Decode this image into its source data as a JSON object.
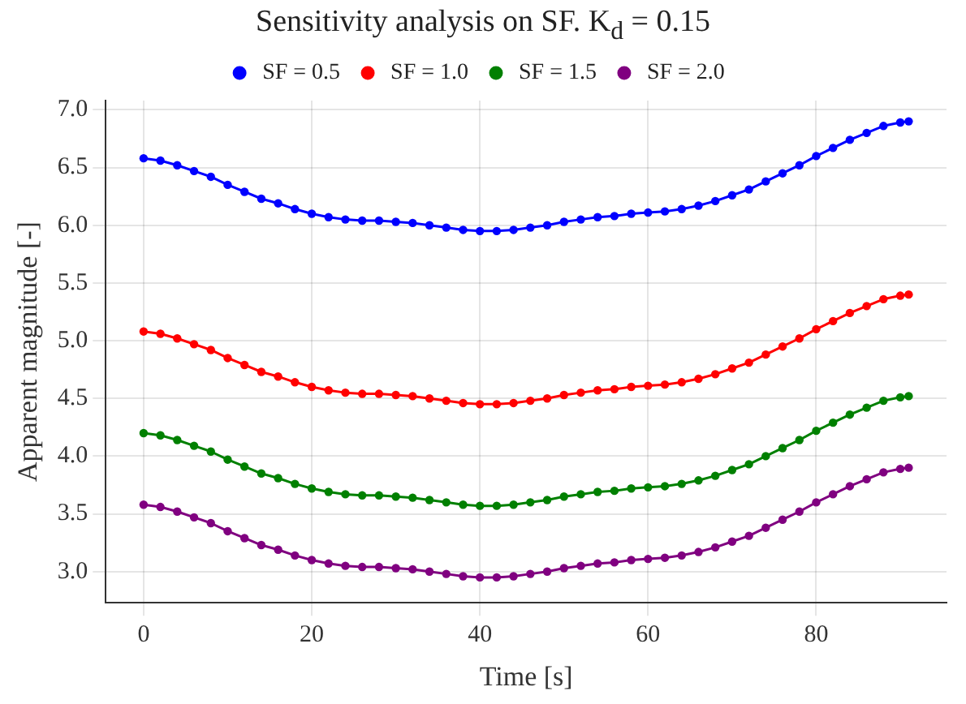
{
  "chart_data": {
    "type": "line",
    "title": "Sensitivity analysis on SF. K$_{d}$ = 0.15",
    "xlabel": "Time [s]",
    "ylabel": "Apparent magnitude [-]",
    "x": [
      0,
      2,
      4,
      6,
      8,
      10,
      12,
      14,
      16,
      18,
      20,
      22,
      24,
      26,
      28,
      30,
      32,
      34,
      36,
      38,
      40,
      42,
      44,
      46,
      48,
      50,
      52,
      54,
      56,
      58,
      60,
      62,
      64,
      66,
      68,
      70,
      72,
      74,
      76,
      78,
      80,
      82,
      84,
      86,
      88,
      90,
      91
    ],
    "series": [
      {
        "name": "SF = 0.5",
        "color": "#0000ff",
        "values": [
          6.58,
          6.56,
          6.52,
          6.47,
          6.42,
          6.35,
          6.29,
          6.23,
          6.19,
          6.14,
          6.1,
          6.07,
          6.05,
          6.04,
          6.04,
          6.03,
          6.02,
          6.0,
          5.98,
          5.96,
          5.95,
          5.95,
          5.96,
          5.98,
          6.0,
          6.03,
          6.05,
          6.07,
          6.08,
          6.1,
          6.11,
          6.12,
          6.14,
          6.17,
          6.21,
          6.26,
          6.31,
          6.38,
          6.45,
          6.52,
          6.6,
          6.67,
          6.74,
          6.8,
          6.86,
          6.89,
          6.9
        ]
      },
      {
        "name": "SF = 1.0",
        "color": "#ff0000",
        "values": [
          5.08,
          5.06,
          5.02,
          4.97,
          4.92,
          4.85,
          4.79,
          4.73,
          4.69,
          4.64,
          4.6,
          4.57,
          4.55,
          4.54,
          4.54,
          4.53,
          4.52,
          4.5,
          4.48,
          4.46,
          4.45,
          4.45,
          4.46,
          4.48,
          4.5,
          4.53,
          4.55,
          4.57,
          4.58,
          4.6,
          4.61,
          4.62,
          4.64,
          4.67,
          4.71,
          4.76,
          4.81,
          4.88,
          4.95,
          5.02,
          5.1,
          5.17,
          5.24,
          5.3,
          5.36,
          5.39,
          5.4
        ]
      },
      {
        "name": "SF = 1.5",
        "color": "#008000",
        "values": [
          4.2,
          4.18,
          4.14,
          4.09,
          4.04,
          3.97,
          3.91,
          3.85,
          3.81,
          3.76,
          3.72,
          3.69,
          3.67,
          3.66,
          3.66,
          3.65,
          3.64,
          3.62,
          3.6,
          3.58,
          3.57,
          3.57,
          3.58,
          3.6,
          3.62,
          3.65,
          3.67,
          3.69,
          3.7,
          3.72,
          3.73,
          3.74,
          3.76,
          3.79,
          3.83,
          3.88,
          3.93,
          4.0,
          4.07,
          4.14,
          4.22,
          4.29,
          4.36,
          4.42,
          4.48,
          4.51,
          4.52
        ]
      },
      {
        "name": "SF = 2.0",
        "color": "#800080",
        "values": [
          3.58,
          3.56,
          3.52,
          3.47,
          3.42,
          3.35,
          3.29,
          3.23,
          3.19,
          3.14,
          3.1,
          3.07,
          3.05,
          3.04,
          3.04,
          3.03,
          3.02,
          3.0,
          2.98,
          2.96,
          2.95,
          2.95,
          2.96,
          2.98,
          3.0,
          3.03,
          3.05,
          3.07,
          3.08,
          3.1,
          3.11,
          3.12,
          3.14,
          3.17,
          3.21,
          3.26,
          3.31,
          3.38,
          3.45,
          3.52,
          3.6,
          3.67,
          3.74,
          3.8,
          3.86,
          3.89,
          3.9
        ]
      }
    ],
    "xlim": [
      -4.5,
      95.5
    ],
    "xticks": [
      0,
      20,
      40,
      60,
      80
    ],
    "ylim": [
      2.73,
      7.08
    ],
    "yticks": [
      {
        "value": 3,
        "label": "3.0"
      },
      3.5,
      {
        "value": 4,
        "label": "4.0"
      },
      4.5,
      {
        "value": 5,
        "label": "5.0"
      },
      5.5,
      {
        "value": 6,
        "label": "6.0"
      },
      6.5,
      {
        "value": 7,
        "label": "7.0"
      }
    ],
    "grid": true,
    "legend": "top",
    "marker": "circle",
    "line_style": "solid"
  }
}
